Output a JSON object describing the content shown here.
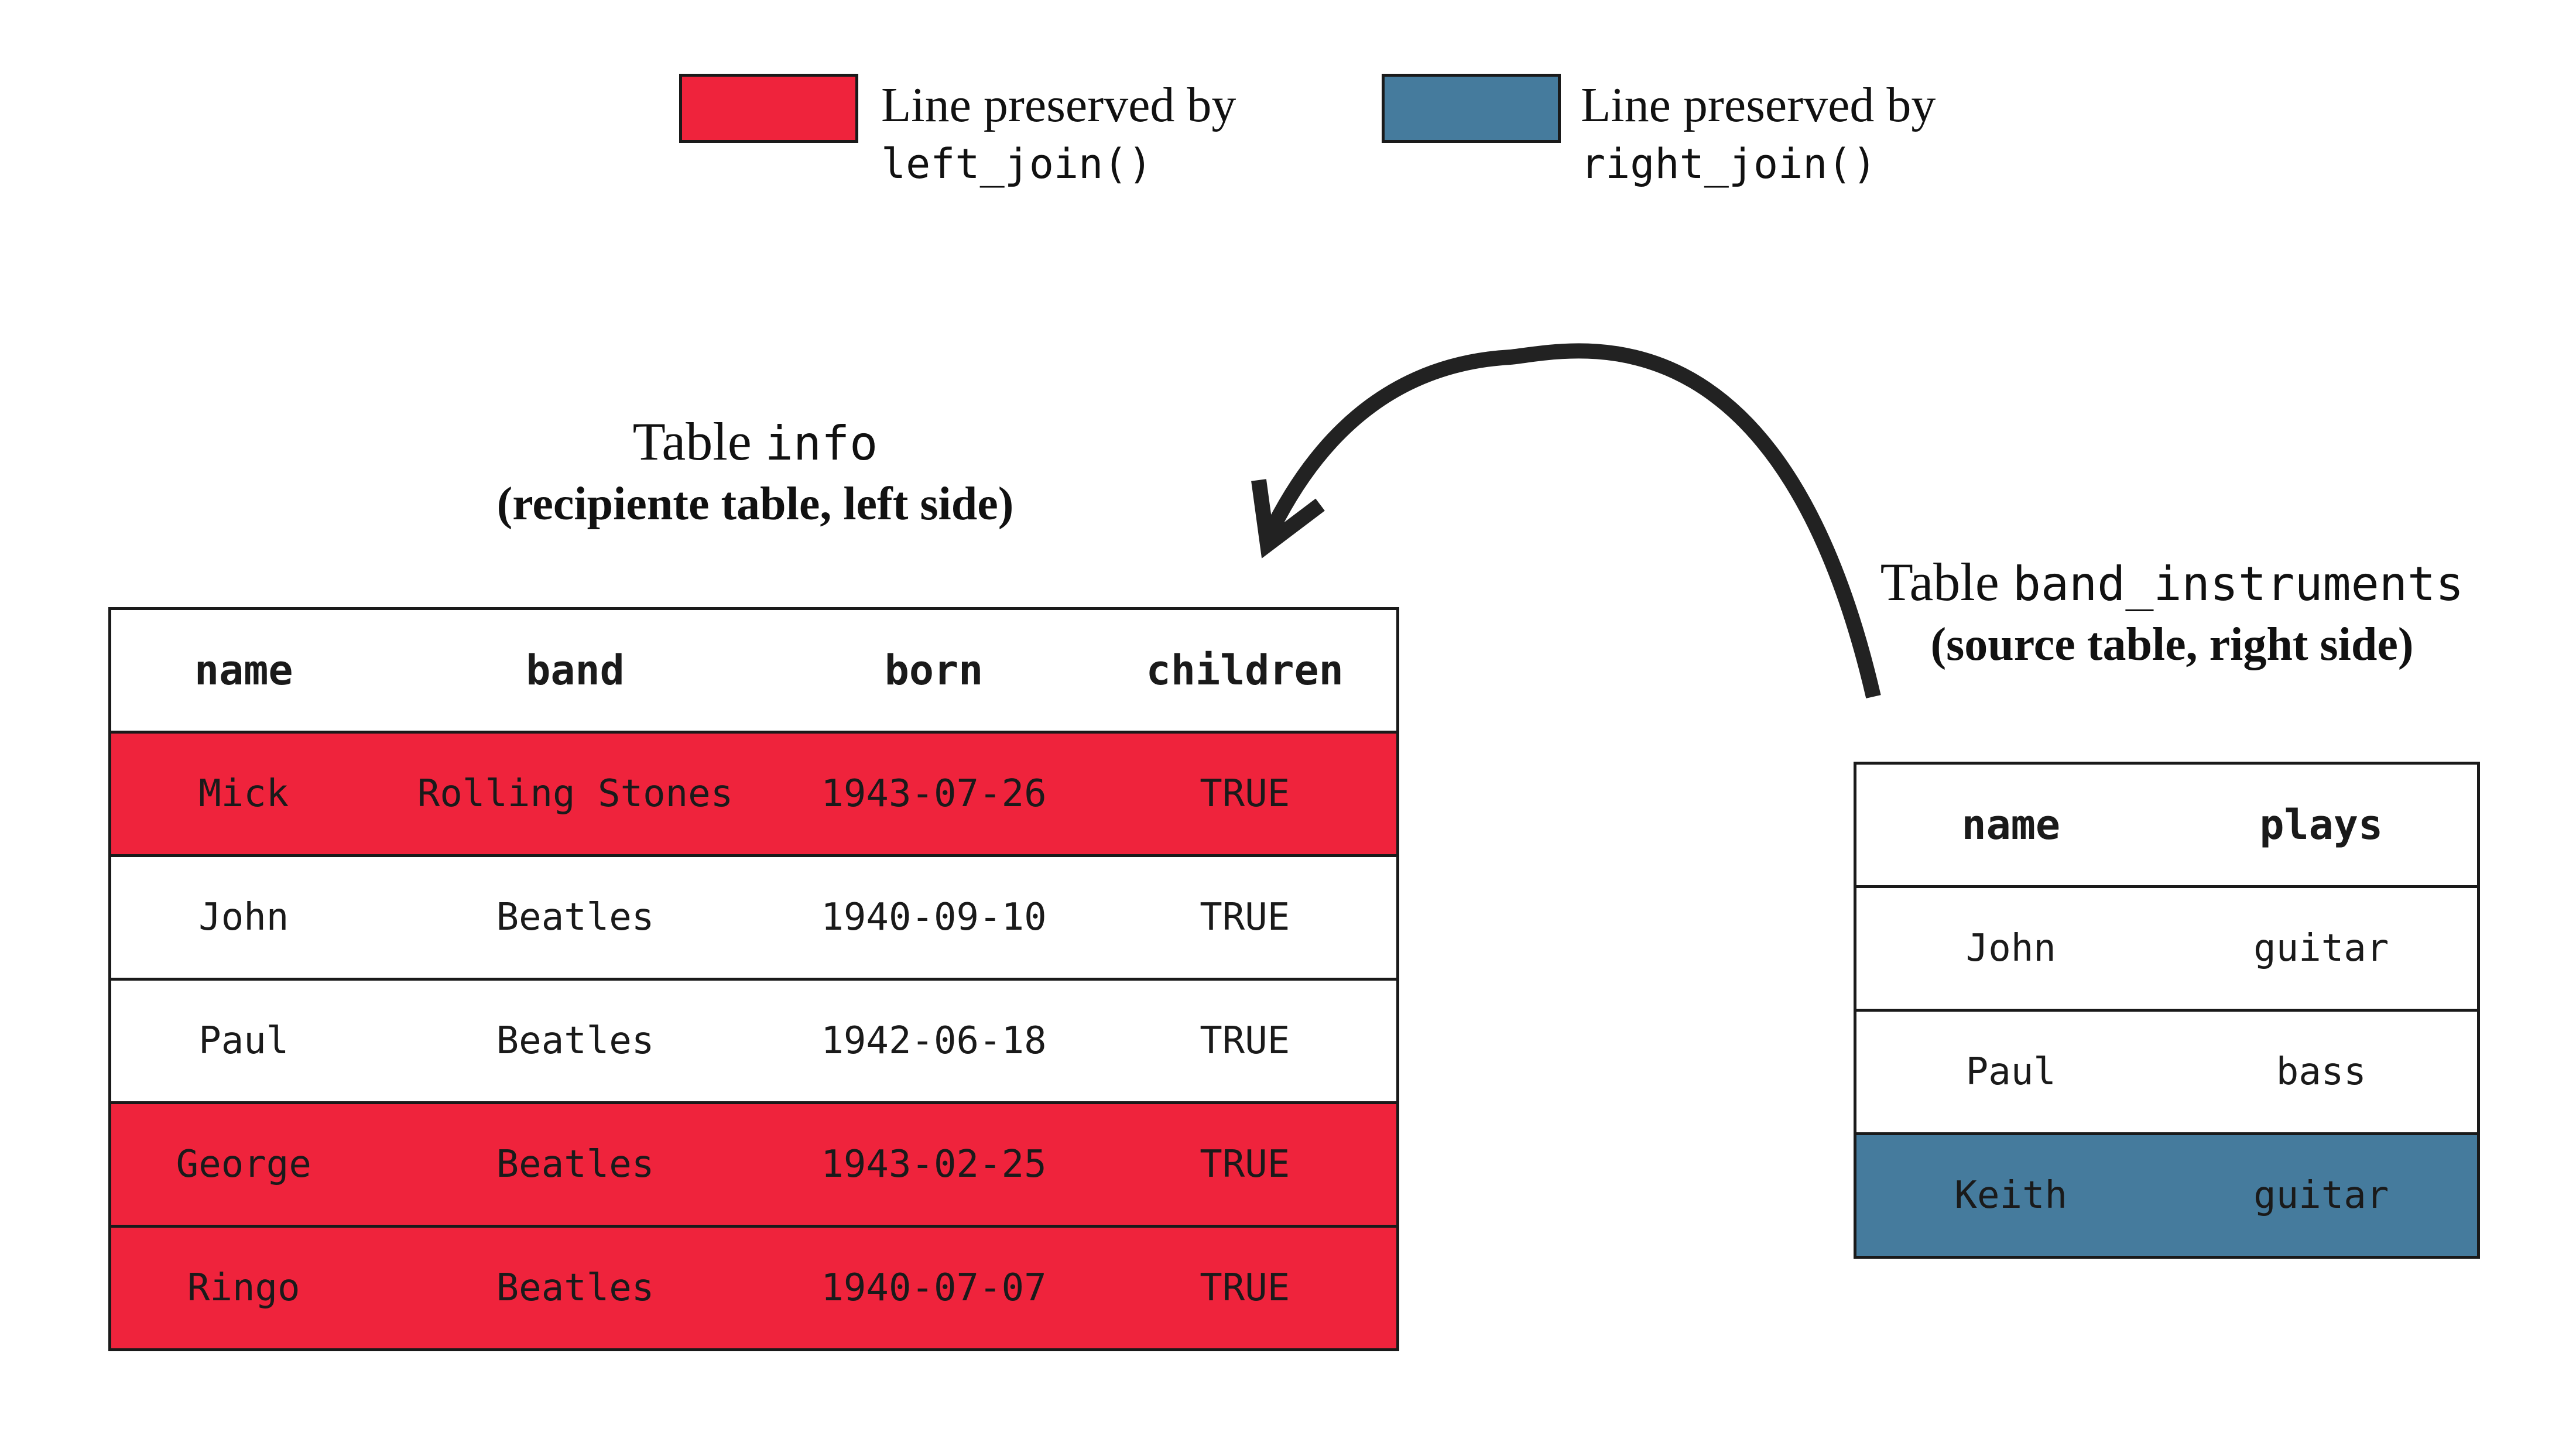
{
  "legend": [
    {
      "color": "#ef233c",
      "line1": "Line preserved by",
      "line2": "left_join()"
    },
    {
      "color": "#457b9d",
      "line1": "Line preserved by",
      "line2": "right_join()"
    }
  ],
  "left_table": {
    "title_prefix": "Table",
    "title_code": "info",
    "subtitle": "(recipiente table, left side)",
    "headers": [
      "name",
      "band",
      "born",
      "children"
    ],
    "rows": [
      {
        "preserved": "left",
        "cells": [
          "Mick",
          "Rolling Stones",
          "1943-07-26",
          "TRUE"
        ]
      },
      {
        "preserved": "none",
        "cells": [
          "John",
          "Beatles",
          "1940-09-10",
          "TRUE"
        ]
      },
      {
        "preserved": "none",
        "cells": [
          "Paul",
          "Beatles",
          "1942-06-18",
          "TRUE"
        ]
      },
      {
        "preserved": "left",
        "cells": [
          "George",
          "Beatles",
          "1943-02-25",
          "TRUE"
        ]
      },
      {
        "preserved": "left",
        "cells": [
          "Ringo",
          "Beatles",
          "1940-07-07",
          "TRUE"
        ]
      }
    ]
  },
  "right_table": {
    "title_prefix": "Table",
    "title_code": "band_instruments",
    "subtitle": "(source table, right side)",
    "headers": [
      "name",
      "plays"
    ],
    "rows": [
      {
        "preserved": "none",
        "cells": [
          "John",
          "guitar"
        ]
      },
      {
        "preserved": "none",
        "cells": [
          "Paul",
          "bass"
        ]
      },
      {
        "preserved": "right",
        "cells": [
          "Keith",
          "guitar"
        ]
      }
    ]
  },
  "colors": {
    "left_preserved": "#ef233c",
    "right_preserved": "#457b9d",
    "arrow": "#222222"
  }
}
